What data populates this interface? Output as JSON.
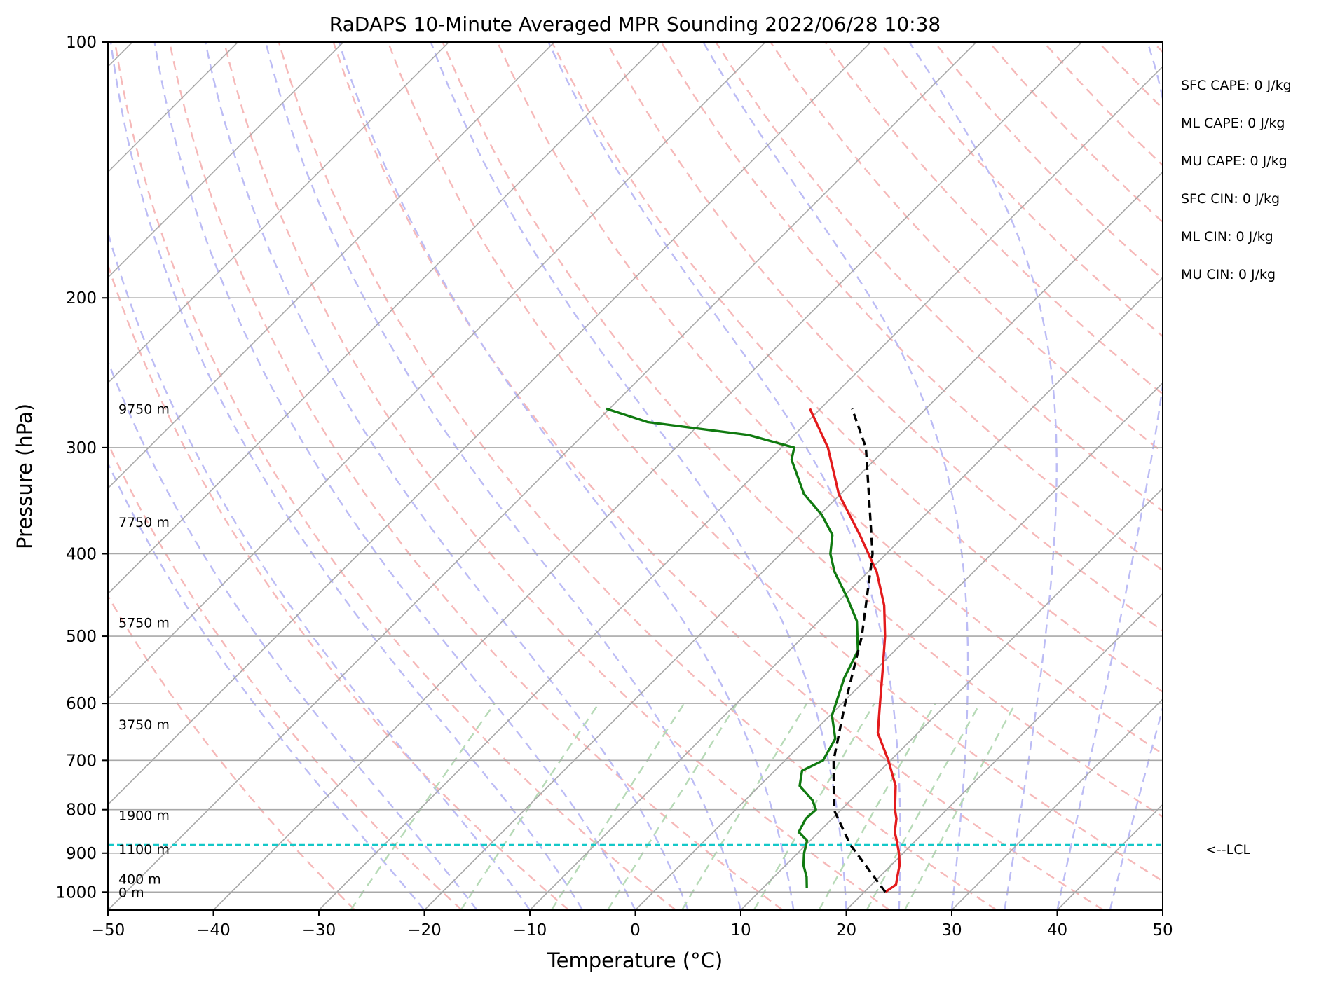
{
  "chart_data": {
    "type": "line",
    "title": "RaDAPS 10-Minute Averaged MPR Sounding 2022/06/28 10:38",
    "xlabel": "Temperature (°C)",
    "ylabel": "Pressure (hPa)",
    "xlim": [
      -50,
      50
    ],
    "ylim": [
      1050,
      100
    ],
    "y_scale": "log",
    "skew": "skew-T",
    "grid": true,
    "x_ticks": [
      -50,
      -40,
      -30,
      -20,
      -10,
      0,
      10,
      20,
      30,
      40,
      50
    ],
    "x_tick_labels": [
      "−50",
      "−40",
      "−30",
      "−20",
      "−10",
      "0",
      "10",
      "20",
      "30",
      "40",
      "50"
    ],
    "y_ticks": [
      1000,
      900,
      800,
      700,
      600,
      500,
      400,
      300,
      200,
      100
    ],
    "y_tick_labels": [
      "1000",
      "900",
      "800",
      "700",
      "600",
      "500",
      "400",
      "300",
      "200",
      "100"
    ],
    "series": [
      {
        "role": "temperature",
        "color": "#e31a1c",
        "points": [
          [
            1000,
            22
          ],
          [
            980,
            22.3
          ],
          [
            960,
            21.7
          ],
          [
            930,
            20.8
          ],
          [
            900,
            19.6
          ],
          [
            870,
            18.2
          ],
          [
            850,
            17.2
          ],
          [
            820,
            16.1
          ],
          [
            800,
            15.1
          ],
          [
            750,
            12.9
          ],
          [
            700,
            9.8
          ],
          [
            650,
            6.2
          ],
          [
            600,
            3.6
          ],
          [
            550,
            0.8
          ],
          [
            500,
            -2.3
          ],
          [
            460,
            -5.3
          ],
          [
            420,
            -9.2
          ],
          [
            380,
            -14.3
          ],
          [
            340,
            -20.2
          ],
          [
            300,
            -25.6
          ],
          [
            270,
            -31.0
          ]
        ]
      },
      {
        "role": "dewpoint",
        "color": "#107a10",
        "points": [
          [
            990,
            14.2
          ],
          [
            960,
            13.1
          ],
          [
            930,
            11.7
          ],
          [
            900,
            10.6
          ],
          [
            870,
            9.7
          ],
          [
            850,
            8.1
          ],
          [
            820,
            7.5
          ],
          [
            800,
            7.6
          ],
          [
            780,
            6.4
          ],
          [
            750,
            3.8
          ],
          [
            720,
            2.6
          ],
          [
            700,
            3.6
          ],
          [
            660,
            2.7
          ],
          [
            620,
            0.2
          ],
          [
            560,
            -2.2
          ],
          [
            520,
            -3.5
          ],
          [
            480,
            -6.4
          ],
          [
            450,
            -9.6
          ],
          [
            420,
            -13.2
          ],
          [
            400,
            -15.3
          ],
          [
            380,
            -16.9
          ],
          [
            360,
            -19.8
          ],
          [
            340,
            -23.5
          ],
          [
            310,
            -27.9
          ],
          [
            300,
            -28.8
          ],
          [
            290,
            -34.3
          ],
          [
            280,
            -45.1
          ],
          [
            270,
            -50.3
          ]
        ]
      },
      {
        "role": "parcel",
        "color": "#000000",
        "points": [
          [
            1000,
            22
          ],
          [
            880,
            14.2
          ],
          [
            800,
            9.3
          ],
          [
            700,
            4.6
          ],
          [
            600,
            0.3
          ],
          [
            500,
            -4.5
          ],
          [
            400,
            -11.3
          ],
          [
            300,
            -22.0
          ],
          [
            270,
            -27.0
          ]
        ]
      }
    ],
    "lcl_pressure": 880,
    "lcl_label": "<--LCL",
    "height_labels": [
      {
        "pressure": 1000,
        "label": "0 m"
      },
      {
        "pressure": 965,
        "label": "400 m"
      },
      {
        "pressure": 890,
        "label": "1100 m"
      },
      {
        "pressure": 812,
        "label": "1900 m"
      },
      {
        "pressure": 635,
        "label": "3750 m"
      },
      {
        "pressure": 482,
        "label": "5750 m"
      },
      {
        "pressure": 367,
        "label": "7750 m"
      },
      {
        "pressure": 270,
        "label": "9750 m"
      }
    ],
    "annotations": [
      "SFC CAPE: 0 J/kg",
      "ML CAPE: 0 J/kg",
      "MU CAPE: 0 J/kg",
      "SFC CIN: 0 J/kg",
      "ML CIN: 0 J/kg",
      "MU CIN: 0 J/kg"
    ],
    "colors": {
      "isotherm": "#a8a8a8",
      "dry_adiabat": "#f6b9b9",
      "moist_adiabat": "#bcbcf5",
      "mixing_ratio": "#b7dab7",
      "lcl_line": "#14c8c8"
    }
  }
}
